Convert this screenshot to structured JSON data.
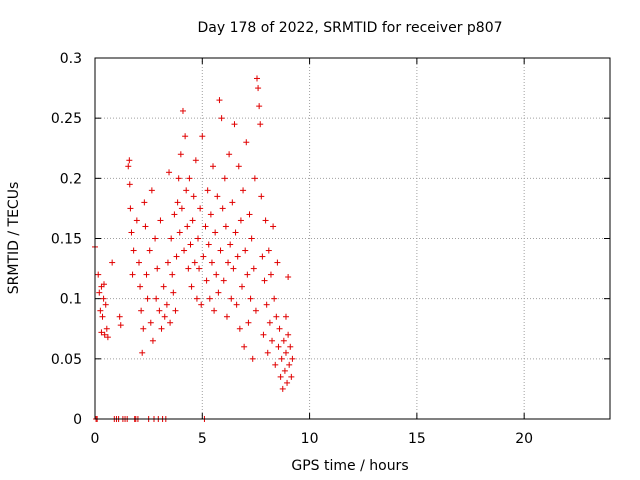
{
  "chart_data": {
    "type": "scatter",
    "title": "Day 178 of 2022, SRMTID for receiver p807",
    "xlabel": "GPS time / hours",
    "ylabel": "SRMTID / TECUs",
    "xlim": [
      0,
      24
    ],
    "ylim": [
      0,
      0.3
    ],
    "xticks": [
      0,
      5,
      10,
      15,
      20
    ],
    "yticks": [
      0,
      0.05,
      0.1,
      0.15,
      0.2,
      0.25,
      0.3
    ],
    "xtick_labels": [
      "0",
      "5",
      "10",
      "15",
      "20"
    ],
    "ytick_labels": [
      "0",
      "0.05",
      "0.1",
      "0.15",
      "0.2",
      "0.25",
      "0.3"
    ],
    "grid": true,
    "marker": "+",
    "color": "#e00000",
    "series": [
      {
        "name": "SRMTID p807",
        "points": [
          [
            0.0,
            0.143
          ],
          [
            0.05,
            0.0
          ],
          [
            0.1,
            0.0
          ],
          [
            0.15,
            0.12
          ],
          [
            0.2,
            0.105
          ],
          [
            0.25,
            0.09
          ],
          [
            0.3,
            0.11
          ],
          [
            0.35,
            0.085
          ],
          [
            0.4,
            0.1
          ],
          [
            0.45,
            0.07
          ],
          [
            0.5,
            0.095
          ],
          [
            0.55,
            0.075
          ],
          [
            0.6,
            0.068
          ],
          [
            0.3,
            0.072
          ],
          [
            0.42,
            0.112
          ],
          [
            0.8,
            0.13
          ],
          [
            0.9,
            0.0
          ],
          [
            1.0,
            0.0
          ],
          [
            1.1,
            0.0
          ],
          [
            1.15,
            0.085
          ],
          [
            1.2,
            0.078
          ],
          [
            1.3,
            0.0
          ],
          [
            1.4,
            0.0
          ],
          [
            1.5,
            0.0
          ],
          [
            1.55,
            0.21
          ],
          [
            1.6,
            0.215
          ],
          [
            1.62,
            0.195
          ],
          [
            1.65,
            0.175
          ],
          [
            1.7,
            0.155
          ],
          [
            1.75,
            0.12
          ],
          [
            1.8,
            0.14
          ],
          [
            1.85,
            0.0
          ],
          [
            1.9,
            0.0
          ],
          [
            1.95,
            0.165
          ],
          [
            2.0,
            0.0
          ],
          [
            2.05,
            0.13
          ],
          [
            2.1,
            0.11
          ],
          [
            2.15,
            0.09
          ],
          [
            2.2,
            0.055
          ],
          [
            2.25,
            0.075
          ],
          [
            2.3,
            0.18
          ],
          [
            2.35,
            0.16
          ],
          [
            2.4,
            0.12
          ],
          [
            2.45,
            0.1
          ],
          [
            2.5,
            0.0
          ],
          [
            2.55,
            0.14
          ],
          [
            2.6,
            0.08
          ],
          [
            2.65,
            0.19
          ],
          [
            2.7,
            0.065
          ],
          [
            2.75,
            0.0
          ],
          [
            2.8,
            0.15
          ],
          [
            2.85,
            0.1
          ],
          [
            2.9,
            0.125
          ],
          [
            2.95,
            0.0
          ],
          [
            3.0,
            0.09
          ],
          [
            3.05,
            0.165
          ],
          [
            3.1,
            0.075
          ],
          [
            3.15,
            0.0
          ],
          [
            3.2,
            0.11
          ],
          [
            3.25,
            0.085
          ],
          [
            3.3,
            0.0
          ],
          [
            3.35,
            0.095
          ],
          [
            3.4,
            0.13
          ],
          [
            3.45,
            0.205
          ],
          [
            3.5,
            0.08
          ],
          [
            3.55,
            0.15
          ],
          [
            3.6,
            0.12
          ],
          [
            3.65,
            0.105
          ],
          [
            3.7,
            0.17
          ],
          [
            3.75,
            0.09
          ],
          [
            3.8,
            0.135
          ],
          [
            3.85,
            0.18
          ],
          [
            3.9,
            0.2
          ],
          [
            3.95,
            0.155
          ],
          [
            4.0,
            0.22
          ],
          [
            4.05,
            0.175
          ],
          [
            4.1,
            0.256
          ],
          [
            4.15,
            0.14
          ],
          [
            4.2,
            0.235
          ],
          [
            4.25,
            0.19
          ],
          [
            4.3,
            0.16
          ],
          [
            4.35,
            0.125
          ],
          [
            4.4,
            0.2
          ],
          [
            4.45,
            0.145
          ],
          [
            4.5,
            0.11
          ],
          [
            4.55,
            0.165
          ],
          [
            4.6,
            0.185
          ],
          [
            4.65,
            0.13
          ],
          [
            4.7,
            0.215
          ],
          [
            4.75,
            0.1
          ],
          [
            4.8,
            0.15
          ],
          [
            4.85,
            0.125
          ],
          [
            4.9,
            0.175
          ],
          [
            4.95,
            0.095
          ],
          [
            5.0,
            0.235
          ],
          [
            5.05,
            0.135
          ],
          [
            5.1,
            0.0
          ],
          [
            5.15,
            0.16
          ],
          [
            5.2,
            0.115
          ],
          [
            5.25,
            0.19
          ],
          [
            5.3,
            0.145
          ],
          [
            5.35,
            0.1
          ],
          [
            5.4,
            0.17
          ],
          [
            5.45,
            0.13
          ],
          [
            5.5,
            0.21
          ],
          [
            5.55,
            0.09
          ],
          [
            5.6,
            0.155
          ],
          [
            5.65,
            0.12
          ],
          [
            5.7,
            0.185
          ],
          [
            5.75,
            0.105
          ],
          [
            5.8,
            0.265
          ],
          [
            5.85,
            0.14
          ],
          [
            5.9,
            0.25
          ],
          [
            5.95,
            0.175
          ],
          [
            6.0,
            0.115
          ],
          [
            6.05,
            0.2
          ],
          [
            6.1,
            0.16
          ],
          [
            6.15,
            0.085
          ],
          [
            6.2,
            0.13
          ],
          [
            6.25,
            0.22
          ],
          [
            6.3,
            0.145
          ],
          [
            6.35,
            0.1
          ],
          [
            6.4,
            0.18
          ],
          [
            6.45,
            0.125
          ],
          [
            6.5,
            0.245
          ],
          [
            6.55,
            0.155
          ],
          [
            6.6,
            0.095
          ],
          [
            6.65,
            0.135
          ],
          [
            6.7,
            0.21
          ],
          [
            6.75,
            0.075
          ],
          [
            6.8,
            0.165
          ],
          [
            6.85,
            0.11
          ],
          [
            6.9,
            0.19
          ],
          [
            6.95,
            0.06
          ],
          [
            7.0,
            0.14
          ],
          [
            7.05,
            0.23
          ],
          [
            7.1,
            0.12
          ],
          [
            7.15,
            0.08
          ],
          [
            7.2,
            0.17
          ],
          [
            7.25,
            0.1
          ],
          [
            7.3,
            0.15
          ],
          [
            7.35,
            0.05
          ],
          [
            7.4,
            0.125
          ],
          [
            7.45,
            0.2
          ],
          [
            7.5,
            0.09
          ],
          [
            7.55,
            0.283
          ],
          [
            7.6,
            0.275
          ],
          [
            7.65,
            0.26
          ],
          [
            7.7,
            0.245
          ],
          [
            7.75,
            0.185
          ],
          [
            7.8,
            0.135
          ],
          [
            7.85,
            0.07
          ],
          [
            7.9,
            0.115
          ],
          [
            7.95,
            0.165
          ],
          [
            8.0,
            0.095
          ],
          [
            8.05,
            0.055
          ],
          [
            8.1,
            0.14
          ],
          [
            8.15,
            0.08
          ],
          [
            8.2,
            0.12
          ],
          [
            8.25,
            0.065
          ],
          [
            8.3,
            0.16
          ],
          [
            8.35,
            0.1
          ],
          [
            8.4,
            0.045
          ],
          [
            8.45,
            0.085
          ],
          [
            8.5,
            0.13
          ],
          [
            8.55,
            0.06
          ],
          [
            8.6,
            0.075
          ],
          [
            8.65,
            0.035
          ],
          [
            8.7,
            0.05
          ],
          [
            8.75,
            0.025
          ],
          [
            8.8,
            0.065
          ],
          [
            8.85,
            0.04
          ],
          [
            8.9,
            0.055
          ],
          [
            8.95,
            0.03
          ],
          [
            9.0,
            0.07
          ],
          [
            9.05,
            0.045
          ],
          [
            9.1,
            0.06
          ],
          [
            9.15,
            0.035
          ],
          [
            9.2,
            0.05
          ],
          [
            9.0,
            0.118
          ],
          [
            8.9,
            0.085
          ]
        ]
      }
    ]
  }
}
